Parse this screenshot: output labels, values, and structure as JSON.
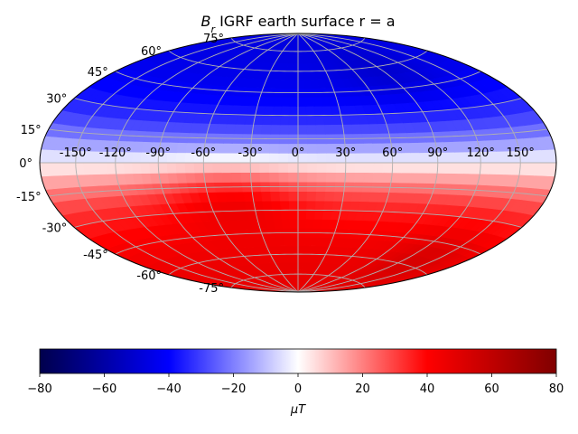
{
  "chart_data": {
    "type": "heatmap",
    "projection": "hammer",
    "title": "B_r IGRF earth surface r = a",
    "title_symbol": "B",
    "title_subscript": "r",
    "title_text": " IGRF earth surface r = a",
    "colormap": "seismic",
    "lon_ticks": [
      "-150°",
      "-120°",
      "-90°",
      "-60°",
      "-30°",
      "0°",
      "30°",
      "60°",
      "90°",
      "120°",
      "150°"
    ],
    "lat_ticks": [
      "75°",
      "60°",
      "45°",
      "30°",
      "15°",
      "0°",
      "-15°",
      "-30°",
      "-45°",
      "-60°",
      "-75°"
    ],
    "colorbar": {
      "min": -80,
      "max": 80,
      "ticks": [
        "−80",
        "−60",
        "−40",
        "−20",
        "0",
        "20",
        "40",
        "60",
        "80"
      ],
      "label": "μT",
      "label_symbol": "μ",
      "label_unit": "T"
    },
    "field_description": "Radial field is about -30 to -55 µT over northern high latitudes and about +30 to +60 µT over southern high latitudes, near 0 along the magnetic equator",
    "grid": true
  }
}
